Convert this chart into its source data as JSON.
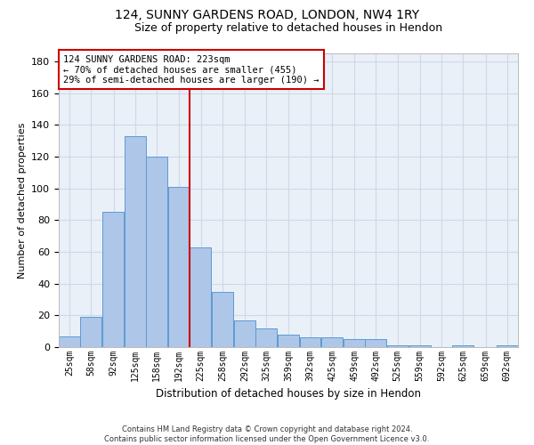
{
  "title_line1": "124, SUNNY GARDENS ROAD, LONDON, NW4 1RY",
  "title_line2": "Size of property relative to detached houses in Hendon",
  "xlabel": "Distribution of detached houses by size in Hendon",
  "ylabel": "Number of detached properties",
  "footnote": "Contains HM Land Registry data © Crown copyright and database right 2024.\nContains public sector information licensed under the Open Government Licence v3.0.",
  "bins": [
    25,
    58,
    92,
    125,
    158,
    192,
    225,
    258,
    292,
    325,
    359,
    392,
    425,
    459,
    492,
    525,
    559,
    592,
    625,
    659,
    692
  ],
  "bin_labels": [
    "25sqm",
    "58sqm",
    "92sqm",
    "125sqm",
    "158sqm",
    "192sqm",
    "225sqm",
    "258sqm",
    "292sqm",
    "325sqm",
    "359sqm",
    "392sqm",
    "425sqm",
    "459sqm",
    "492sqm",
    "525sqm",
    "559sqm",
    "592sqm",
    "625sqm",
    "659sqm",
    "692sqm"
  ],
  "values": [
    7,
    19,
    85,
    133,
    120,
    101,
    63,
    35,
    17,
    12,
    8,
    6,
    6,
    5,
    5,
    1,
    1,
    0,
    1,
    0,
    1
  ],
  "bar_color": "#aec6e8",
  "bar_edge_color": "#5b9bd5",
  "property_line_x": 225,
  "property_line_color": "#cc0000",
  "annotation_title": "124 SUNNY GARDENS ROAD: 223sqm",
  "annotation_line1": "← 70% of detached houses are smaller (455)",
  "annotation_line2": "29% of semi-detached houses are larger (190) →",
  "annotation_box_color": "#ffffff",
  "annotation_box_edge_color": "#cc0000",
  "ylim": [
    0,
    185
  ],
  "yticks": [
    0,
    20,
    40,
    60,
    80,
    100,
    120,
    140,
    160,
    180
  ],
  "grid_color": "#d0d8e8",
  "plot_bg_color": "#eaf0f8",
  "title1_fontsize": 10,
  "title2_fontsize": 9,
  "ylabel_fontsize": 8,
  "xlabel_fontsize": 8.5,
  "ytick_fontsize": 8,
  "xtick_fontsize": 7,
  "annot_fontsize": 7.5
}
